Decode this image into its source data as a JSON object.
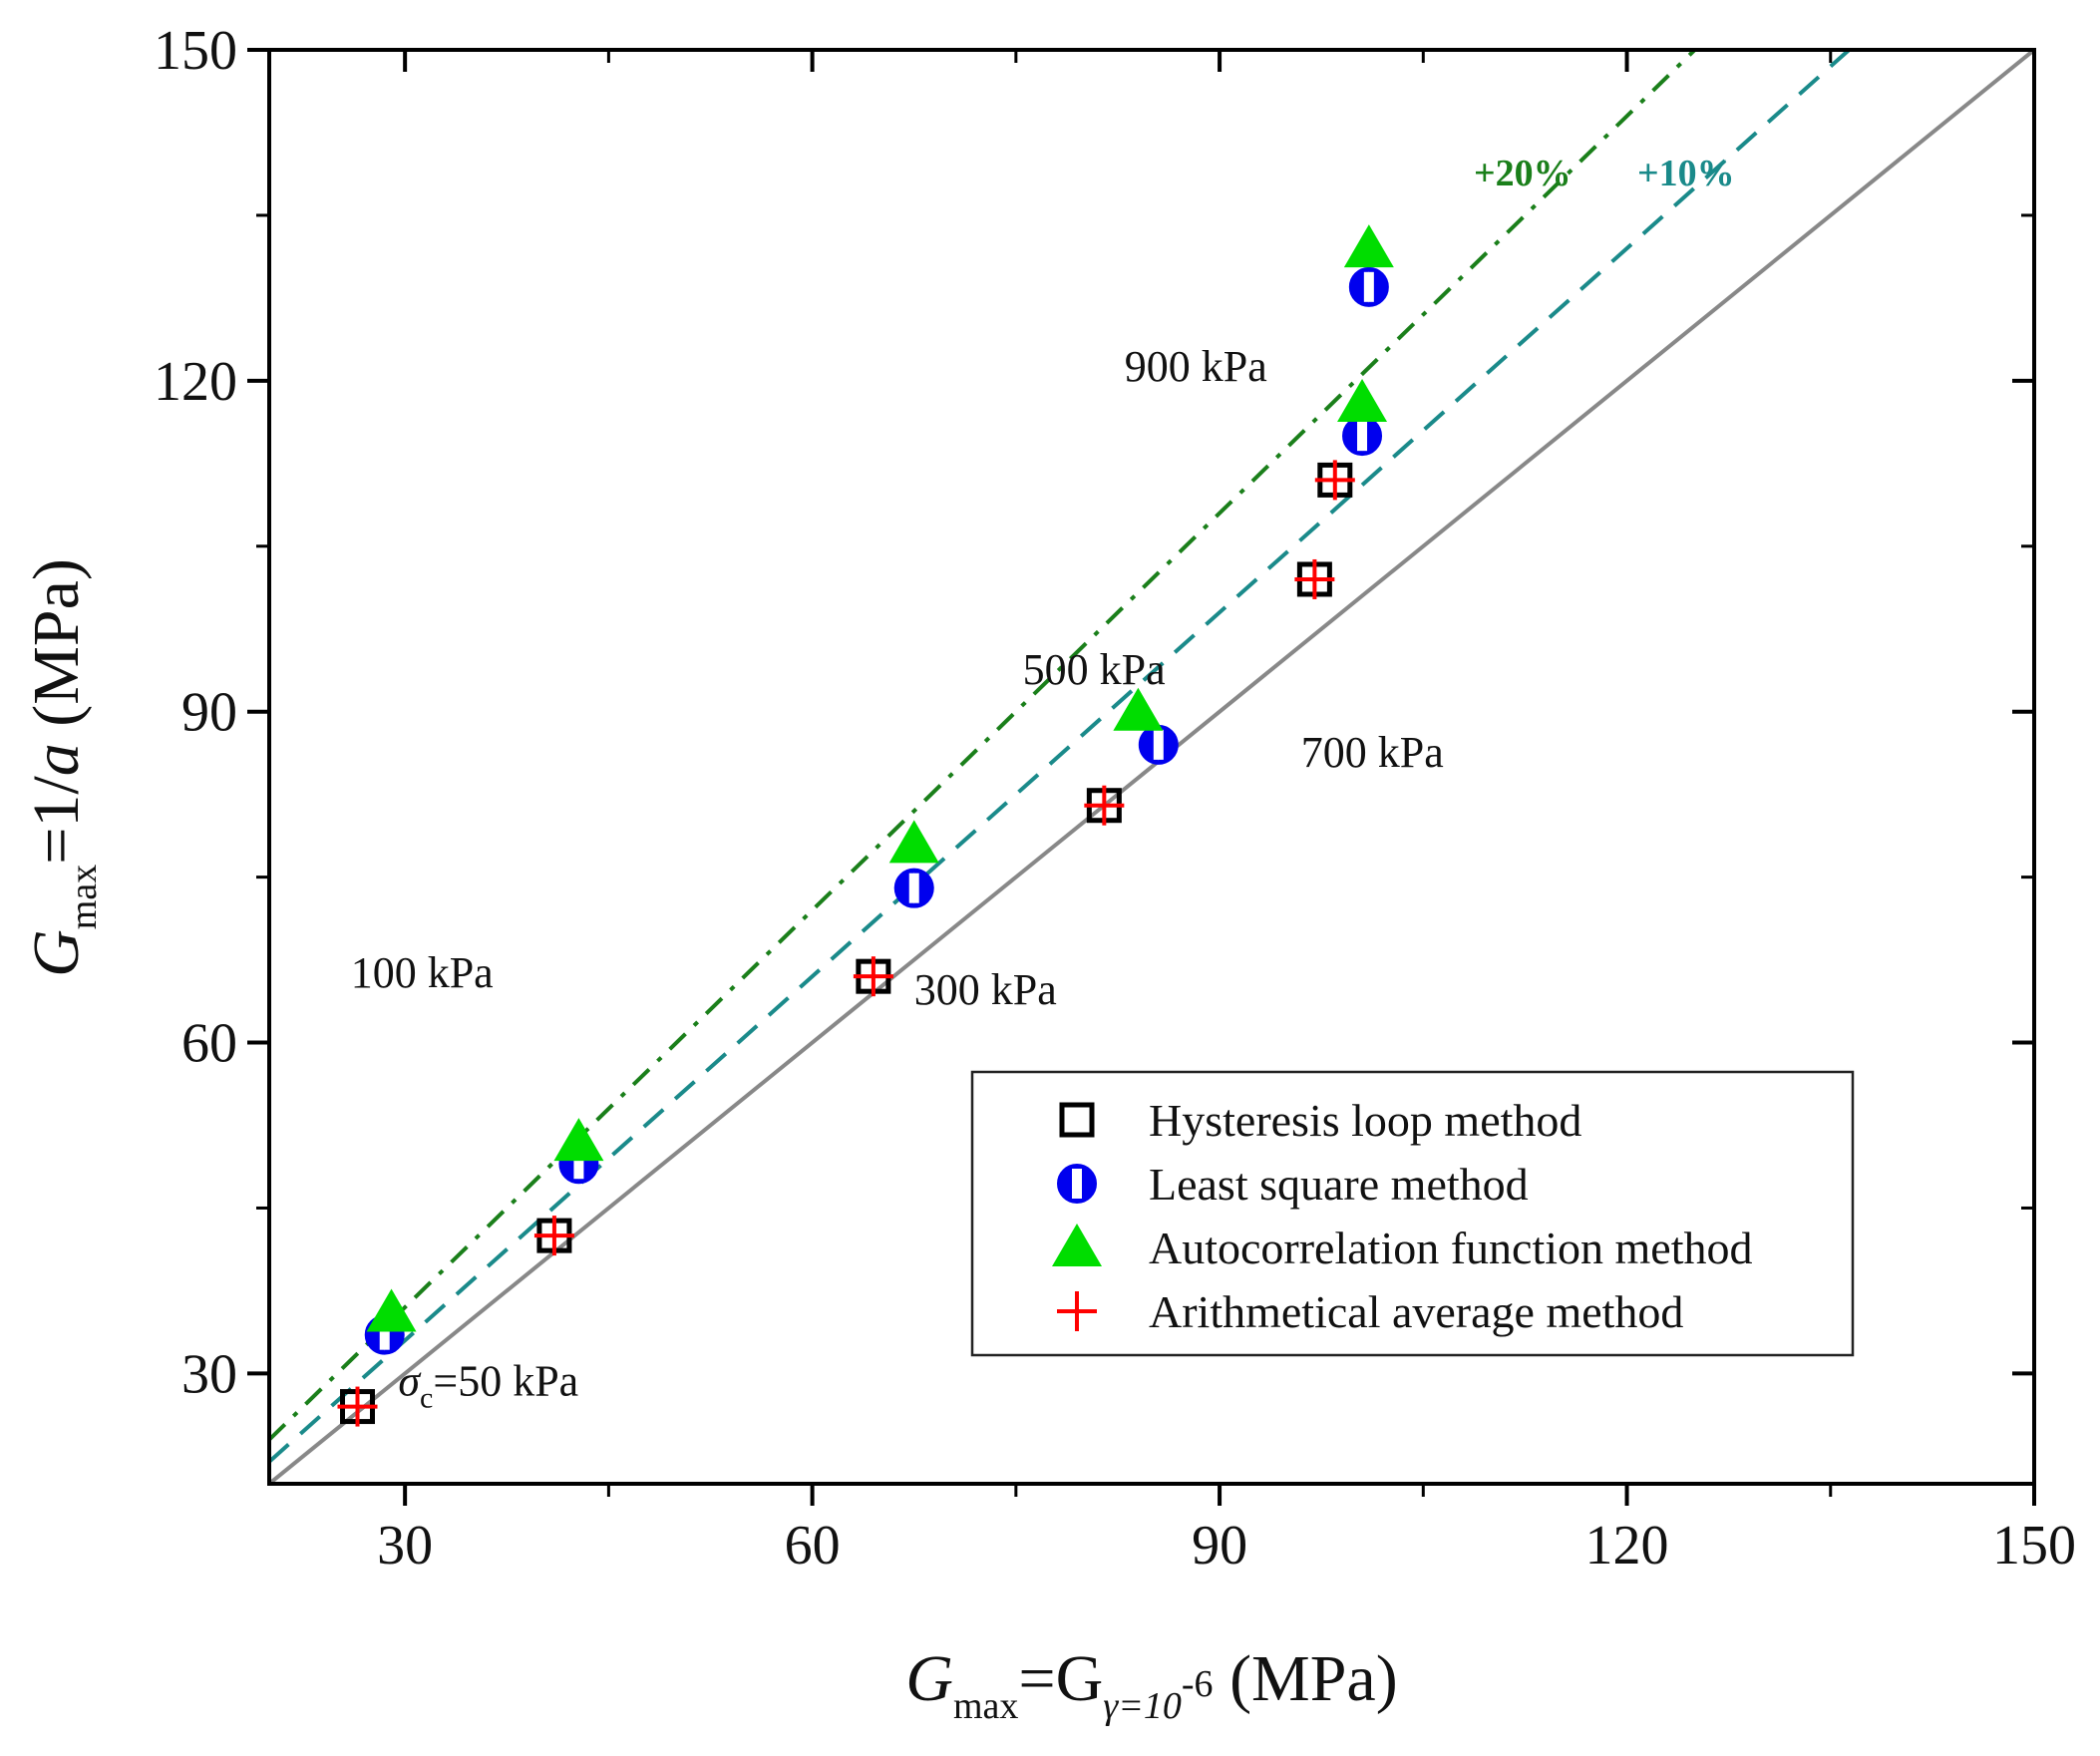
{
  "chart_data": {
    "type": "scatter",
    "title": "",
    "xlabel": {
      "main": "G",
      "sub": "max",
      "eq": "=G",
      "sub2": "γ=10",
      "sup2": "-6",
      "unit": " (MPa)"
    },
    "ylabel": {
      "main": "G",
      "sub": "max",
      "eq": "=1/",
      "var": "a",
      "unit": " (MPa)"
    },
    "xlim": [
      20,
      150
    ],
    "ylim": [
      20,
      150
    ],
    "xticks": [
      30,
      60,
      90,
      120,
      150
    ],
    "yticks": [
      30,
      60,
      90,
      120,
      150
    ],
    "xticks_minor": [
      45,
      75,
      105,
      135
    ],
    "yticks_minor": [
      45,
      75,
      105,
      135
    ],
    "grid": false,
    "legend_position": "lower-right",
    "series": [
      {
        "name": "Hysteresis loop method",
        "marker": "open-square",
        "color": "#000000",
        "x": [
          26.5,
          41,
          64.5,
          81.5,
          97,
          98.5
        ],
        "y": [
          27,
          42.5,
          66,
          81.5,
          102,
          111
        ]
      },
      {
        "name": "Least square method",
        "marker": "half-filled-circle",
        "color": "#0000ee",
        "x": [
          28.5,
          42.8,
          67.5,
          85.5,
          100.5,
          101
        ],
        "y": [
          33.5,
          49,
          74,
          87,
          115,
          128.5
        ]
      },
      {
        "name": "Autocorrelation function method",
        "marker": "filled-triangle",
        "color": "#00dd00",
        "x": [
          29,
          42.8,
          67.5,
          84,
          100.5,
          101
        ],
        "y": [
          35.5,
          51,
          78,
          90,
          118,
          132
        ]
      },
      {
        "name": "Arithmetical average method",
        "marker": "plus",
        "color": "#ff0000",
        "x": [
          26.5,
          41,
          64.5,
          81.5,
          97,
          98.5
        ],
        "y": [
          27,
          42.5,
          66,
          81.5,
          102,
          111
        ]
      }
    ],
    "reference_lines": [
      {
        "name": "1:1",
        "slope": 1.0,
        "style": "solid",
        "color": "#888888"
      },
      {
        "name": "+10%",
        "slope": 1.1,
        "style": "dashed",
        "color": "#1a8a8a",
        "label": "+10%"
      },
      {
        "name": "+20%",
        "slope": 1.2,
        "style": "dash-dot",
        "color": "#1a7f1a",
        "label": "+20%"
      }
    ],
    "annotations": [
      {
        "text": "σ",
        "sub": "c",
        "rest": "=50 kPa",
        "x": 29.5,
        "y": 28
      },
      {
        "text": "100 kPa",
        "x": 26,
        "y": 65
      },
      {
        "text": "300 kPa",
        "x": 67.5,
        "y": 63.5
      },
      {
        "text": "500 kPa",
        "x": 75.5,
        "y": 92.5
      },
      {
        "text": "700 kPa",
        "x": 96,
        "y": 85
      },
      {
        "text": "900 kPa",
        "x": 83,
        "y": 120
      }
    ]
  }
}
